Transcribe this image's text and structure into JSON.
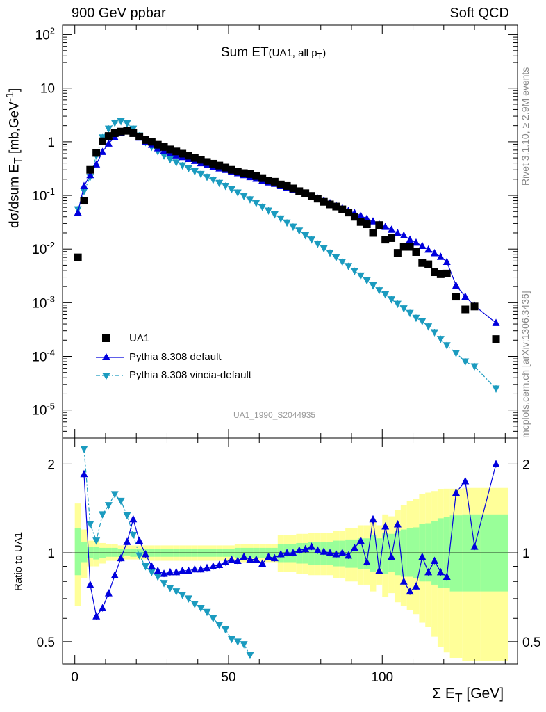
{
  "header": {
    "left": "900 GeV ppbar",
    "right": "Soft QCD",
    "side_top": "Rivet 3.1.10, ≥ 2.9M events",
    "side_bottom": "mcplots.cern.ch [arXiv:1306.3436]"
  },
  "panel_title": {
    "main": "Sum ET",
    "sub_prefix": "(UA1, all p",
    "sub_sub": "T",
    "sub_suffix": ")"
  },
  "analysis_id": "UA1_1990_S2044935",
  "axes": {
    "top_ylabel_prefix": "dσ/dsum E",
    "top_ylabel_sub": "T",
    "top_ylabel_mid": " [mb,GeV",
    "top_ylabel_sup": "-1",
    "top_ylabel_suffix": "]",
    "bottom_ylabel": "Ratio to UA1",
    "xlabel_prefix": "Σ E",
    "xlabel_sub": "T",
    "xlabel_suffix": " [GeV]"
  },
  "legend": [
    {
      "label": "UA1",
      "color": "#000000",
      "marker": "square"
    },
    {
      "label": "Pythia 8.308 default",
      "color": "#0000dd",
      "marker": "triangle-up"
    },
    {
      "label": "Pythia 8.308 vincia-default",
      "color": "#1b9bbf",
      "marker": "triangle-down"
    }
  ],
  "chart_data": {
    "type": "scatter",
    "x_range": [
      -4,
      144
    ],
    "top": {
      "yscale": "log",
      "ylim": [
        3e-06,
        150
      ],
      "yticks": [
        {
          "value": 100,
          "base": "10",
          "exp": "2"
        },
        {
          "value": 10,
          "base": "10",
          "exp": ""
        },
        {
          "value": 1,
          "base": "1",
          "exp": ""
        },
        {
          "value": 0.1,
          "base": "10",
          "exp": "-1"
        },
        {
          "value": 0.01,
          "base": "10",
          "exp": "-2"
        },
        {
          "value": 0.001,
          "base": "10",
          "exp": "-3"
        },
        {
          "value": 0.0001,
          "base": "10",
          "exp": "-4"
        },
        {
          "value": 1e-05,
          "base": "10",
          "exp": "-5"
        }
      ],
      "series": [
        {
          "name": "UA1",
          "x": [
            1,
            3,
            5,
            7,
            9,
            11,
            13,
            15,
            17,
            19,
            21,
            23,
            25,
            27,
            29,
            31,
            33,
            35,
            37,
            39,
            41,
            43,
            45,
            47,
            49,
            51,
            53,
            55,
            57,
            59,
            61,
            63,
            65,
            67,
            69,
            71,
            73,
            75,
            77,
            79,
            81,
            83,
            85,
            87,
            89,
            91,
            93,
            95,
            97,
            99,
            101,
            103,
            105,
            107,
            109,
            111,
            113,
            115,
            117,
            119,
            121,
            124,
            127,
            130,
            137
          ],
          "y": [
            0.007,
            0.08,
            0.3,
            0.62,
            1.02,
            1.28,
            1.45,
            1.55,
            1.6,
            1.45,
            1.25,
            1.08,
            1.0,
            0.88,
            0.8,
            0.72,
            0.66,
            0.6,
            0.55,
            0.5,
            0.46,
            0.42,
            0.39,
            0.36,
            0.33,
            0.3,
            0.28,
            0.26,
            0.25,
            0.23,
            0.21,
            0.19,
            0.18,
            0.16,
            0.15,
            0.135,
            0.12,
            0.11,
            0.098,
            0.087,
            0.076,
            0.068,
            0.062,
            0.055,
            0.048,
            0.04,
            0.032,
            0.029,
            0.02,
            0.028,
            0.015,
            0.016,
            0.0085,
            0.011,
            0.011,
            0.0088,
            0.0055,
            0.0052,
            0.0037,
            0.0034,
            0.0035,
            0.0013,
            0.00075,
            0.00085,
            0.00021
          ]
        },
        {
          "name": "Pythia 8.308 default",
          "x": [
            1,
            3,
            5,
            7,
            9,
            11,
            13,
            15,
            17,
            19,
            21,
            23,
            25,
            27,
            29,
            31,
            33,
            35,
            37,
            39,
            41,
            43,
            45,
            47,
            49,
            51,
            53,
            55,
            57,
            59,
            61,
            63,
            65,
            67,
            69,
            71,
            73,
            75,
            77,
            79,
            81,
            83,
            85,
            87,
            89,
            91,
            93,
            95,
            97,
            99,
            101,
            103,
            105,
            107,
            109,
            111,
            113,
            115,
            117,
            119,
            121,
            124,
            127,
            130,
            137
          ],
          "y": [
            0.048,
            0.15,
            0.24,
            0.38,
            0.65,
            0.93,
            1.22,
            1.48,
            1.6,
            1.43,
            1.2,
            1.0,
            0.88,
            0.76,
            0.68,
            0.62,
            0.56,
            0.52,
            0.48,
            0.44,
            0.4,
            0.37,
            0.34,
            0.32,
            0.3,
            0.28,
            0.26,
            0.24,
            0.22,
            0.205,
            0.19,
            0.175,
            0.165,
            0.15,
            0.14,
            0.128,
            0.118,
            0.107,
            0.097,
            0.088,
            0.08,
            0.072,
            0.065,
            0.058,
            0.052,
            0.047,
            0.042,
            0.037,
            0.033,
            0.029,
            0.026,
            0.023,
            0.02,
            0.018,
            0.015,
            0.0132,
            0.0115,
            0.0098,
            0.0084,
            0.0072,
            0.0058,
            0.0021,
            0.0013,
            0.00088,
            0.00042
          ]
        },
        {
          "name": "Pythia 8.308 vincia-default",
          "x": [
            1,
            3,
            5,
            7,
            9,
            11,
            13,
            15,
            17,
            19,
            21,
            23,
            25,
            27,
            29,
            31,
            33,
            35,
            37,
            39,
            41,
            43,
            45,
            47,
            49,
            51,
            53,
            55,
            57,
            59,
            61,
            63,
            65,
            67,
            69,
            71,
            73,
            75,
            77,
            79,
            81,
            83,
            85,
            87,
            89,
            91,
            93,
            95,
            97,
            99,
            101,
            103,
            105,
            107,
            109,
            111,
            113,
            115,
            117,
            119,
            121,
            124,
            127,
            130,
            137
          ],
          "y": [
            0.055,
            0.12,
            0.22,
            0.55,
            1.2,
            1.75,
            2.25,
            2.4,
            2.2,
            1.75,
            1.3,
            0.98,
            0.8,
            0.66,
            0.55,
            0.47,
            0.41,
            0.36,
            0.32,
            0.28,
            0.25,
            0.22,
            0.195,
            0.17,
            0.15,
            0.13,
            0.113,
            0.097,
            0.084,
            0.072,
            0.061,
            0.052,
            0.044,
            0.037,
            0.031,
            0.026,
            0.022,
            0.018,
            0.015,
            0.0125,
            0.0103,
            0.0085,
            0.007,
            0.0058,
            0.0048,
            0.0039,
            0.0032,
            0.0026,
            0.0021,
            0.0017,
            0.00143,
            0.00115,
            0.00095,
            0.00078,
            0.00064,
            0.00052,
            0.00045,
            0.00036,
            0.00028,
            0.00021,
            0.00016,
            0.000115,
            8e-05,
            6.5e-05,
            2.5e-05
          ]
        }
      ]
    },
    "bottom": {
      "yscale": "log",
      "ylim": [
        0.42,
        2.45
      ],
      "yticks": [
        {
          "value": 0.5,
          "label": "0.5"
        },
        {
          "value": 1,
          "label": "1"
        },
        {
          "value": 2,
          "label": "2"
        }
      ],
      "band_x_edges": [
        0,
        2,
        4,
        6,
        8,
        10,
        12,
        14,
        16,
        18,
        20,
        22,
        24,
        26,
        28,
        30,
        32,
        34,
        36,
        38,
        40,
        42,
        44,
        46,
        48,
        50,
        52,
        54,
        56,
        58,
        60,
        62,
        64,
        66,
        68,
        70,
        72,
        74,
        76,
        78,
        80,
        82,
        84,
        86,
        88,
        90,
        92,
        94,
        96,
        98,
        100,
        102,
        104,
        106,
        108,
        110,
        112,
        114,
        116,
        118,
        120,
        122,
        126,
        132,
        141
      ],
      "green_band": {
        "color": "#99ff99",
        "lo": [
          0.84,
          0.93,
          0.96,
          0.95,
          0.96,
          0.97,
          0.97,
          0.97,
          0.98,
          0.97,
          0.97,
          0.97,
          0.97,
          0.97,
          0.97,
          0.97,
          0.97,
          0.97,
          0.97,
          0.97,
          0.97,
          0.97,
          0.97,
          0.97,
          0.97,
          0.97,
          0.96,
          0.96,
          0.96,
          0.96,
          0.96,
          0.96,
          0.96,
          0.93,
          0.93,
          0.93,
          0.92,
          0.92,
          0.91,
          0.91,
          0.91,
          0.91,
          0.9,
          0.9,
          0.89,
          0.89,
          0.88,
          0.88,
          0.86,
          0.88,
          0.85,
          0.86,
          0.84,
          0.83,
          0.83,
          0.82,
          0.8,
          0.8,
          0.78,
          0.76,
          0.76,
          0.74,
          0.74,
          0.74
        ],
        "hi": [
          1.21,
          1.09,
          1.05,
          1.05,
          1.04,
          1.04,
          1.04,
          1.03,
          1.03,
          1.03,
          1.03,
          1.03,
          1.03,
          1.03,
          1.03,
          1.03,
          1.03,
          1.03,
          1.03,
          1.03,
          1.03,
          1.03,
          1.03,
          1.03,
          1.03,
          1.03,
          1.04,
          1.04,
          1.04,
          1.04,
          1.04,
          1.04,
          1.04,
          1.07,
          1.07,
          1.07,
          1.08,
          1.08,
          1.09,
          1.09,
          1.09,
          1.09,
          1.1,
          1.1,
          1.11,
          1.11,
          1.12,
          1.12,
          1.15,
          1.12,
          1.17,
          1.16,
          1.19,
          1.2,
          1.21,
          1.22,
          1.25,
          1.26,
          1.28,
          1.31,
          1.32,
          1.34,
          1.35,
          1.35
        ]
      },
      "yellow_band": {
        "color": "#ffff99",
        "lo": [
          0.66,
          0.82,
          0.9,
          0.9,
          0.92,
          0.94,
          0.94,
          0.94,
          0.95,
          0.95,
          0.95,
          0.95,
          0.94,
          0.94,
          0.94,
          0.94,
          0.94,
          0.94,
          0.94,
          0.94,
          0.94,
          0.94,
          0.94,
          0.94,
          0.94,
          0.94,
          0.93,
          0.93,
          0.93,
          0.93,
          0.93,
          0.93,
          0.93,
          0.86,
          0.86,
          0.86,
          0.85,
          0.85,
          0.84,
          0.84,
          0.84,
          0.84,
          0.82,
          0.82,
          0.8,
          0.8,
          0.78,
          0.78,
          0.74,
          0.78,
          0.71,
          0.73,
          0.68,
          0.66,
          0.64,
          0.62,
          0.58,
          0.56,
          0.52,
          0.48,
          0.46,
          0.44,
          0.43,
          0.43
        ],
        "hi": [
          1.47,
          1.2,
          1.1,
          1.1,
          1.08,
          1.07,
          1.07,
          1.06,
          1.06,
          1.06,
          1.06,
          1.06,
          1.06,
          1.06,
          1.06,
          1.06,
          1.06,
          1.06,
          1.06,
          1.06,
          1.06,
          1.06,
          1.06,
          1.06,
          1.06,
          1.06,
          1.07,
          1.07,
          1.07,
          1.07,
          1.07,
          1.07,
          1.07,
          1.15,
          1.15,
          1.15,
          1.16,
          1.16,
          1.17,
          1.17,
          1.17,
          1.17,
          1.19,
          1.19,
          1.21,
          1.21,
          1.24,
          1.24,
          1.3,
          1.24,
          1.35,
          1.33,
          1.4,
          1.45,
          1.5,
          1.52,
          1.58,
          1.6,
          1.62,
          1.64,
          1.65,
          1.65,
          1.66,
          1.66
        ]
      },
      "series": [
        {
          "name": "Pythia 8.308 default",
          "x": [
            3,
            5,
            7,
            9,
            11,
            13,
            15,
            17,
            19,
            21,
            23,
            25,
            27,
            29,
            31,
            33,
            35,
            37,
            39,
            41,
            43,
            45,
            47,
            49,
            51,
            53,
            55,
            57,
            59,
            61,
            63,
            65,
            67,
            69,
            71,
            73,
            75,
            77,
            79,
            81,
            83,
            85,
            87,
            89,
            91,
            93,
            95,
            97,
            99,
            101,
            103,
            105,
            107,
            109,
            111,
            113,
            115,
            117,
            119,
            121,
            124,
            127,
            130,
            137
          ],
          "y": [
            1.85,
            0.78,
            0.61,
            0.65,
            0.73,
            0.84,
            0.96,
            1.09,
            1.3,
            1.1,
            0.99,
            0.9,
            0.87,
            0.85,
            0.86,
            0.86,
            0.87,
            0.87,
            0.88,
            0.88,
            0.89,
            0.9,
            0.91,
            0.93,
            0.95,
            0.94,
            0.97,
            0.95,
            0.95,
            0.92,
            0.97,
            0.96,
            0.99,
            1.0,
            1.0,
            1.02,
            1.03,
            1.05,
            1.02,
            1.01,
            1.0,
            0.99,
            1.0,
            0.98,
            1.04,
            1.1,
            0.93,
            1.3,
            0.87,
            1.23,
            0.97,
            1.25,
            0.8,
            0.74,
            0.77,
            0.97,
            0.86,
            0.94,
            0.86,
            0.83,
            1.6,
            1.75,
            1.05,
            2.0
          ]
        },
        {
          "name": "Pythia 8.308 vincia-default",
          "x": [
            3,
            5,
            7,
            9,
            11,
            13,
            15,
            17,
            19,
            21,
            23,
            25,
            27,
            29,
            31,
            33,
            35,
            37,
            39,
            41,
            43,
            45,
            47,
            49,
            51,
            53,
            55,
            57
          ],
          "y": [
            2.25,
            1.25,
            1.1,
            1.35,
            1.45,
            1.58,
            1.5,
            1.34,
            1.15,
            0.98,
            0.9,
            0.86,
            0.83,
            0.79,
            0.76,
            0.74,
            0.72,
            0.7,
            0.67,
            0.65,
            0.63,
            0.6,
            0.57,
            0.55,
            0.51,
            0.5,
            0.49,
            0.45
          ]
        }
      ]
    },
    "xticks": [
      {
        "value": 0,
        "label": "0"
      },
      {
        "value": 50,
        "label": "50"
      },
      {
        "value": 100,
        "label": "100"
      }
    ]
  }
}
